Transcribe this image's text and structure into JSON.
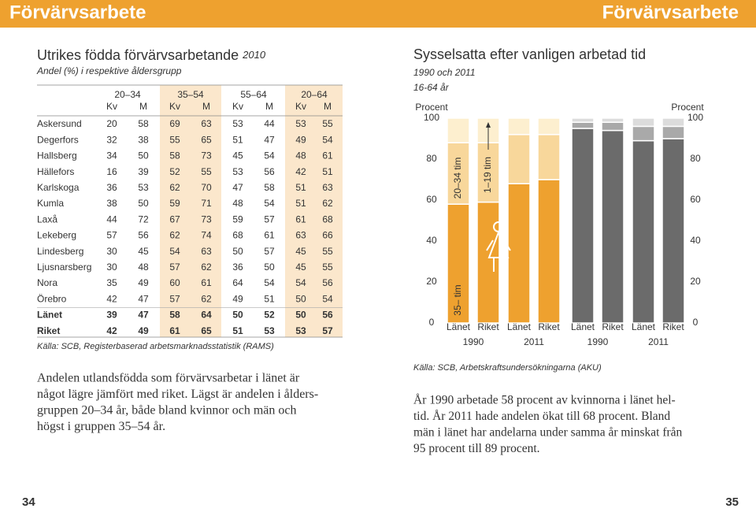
{
  "header": {
    "left": "Förvärvsarbete",
    "right": "Förvärvsarbete"
  },
  "table": {
    "title": "Utrikes födda förvärvsarbetande",
    "year": "2010",
    "subtitle": "Andel (%) i respektive åldersgrupp",
    "groups": [
      "20–34",
      "35–54",
      "55–64",
      "20–64"
    ],
    "subheads": [
      "Kv",
      "M",
      "Kv",
      "M",
      "Kv",
      "M",
      "Kv",
      "M"
    ],
    "rows": [
      [
        "Askersund",
        20,
        58,
        69,
        63,
        53,
        44,
        53,
        55
      ],
      [
        "Degerfors",
        32,
        38,
        55,
        65,
        51,
        47,
        49,
        54
      ],
      [
        "Hallsberg",
        34,
        50,
        58,
        73,
        45,
        54,
        48,
        61
      ],
      [
        "Hällefors",
        16,
        39,
        52,
        55,
        53,
        56,
        42,
        51
      ],
      [
        "Karlskoga",
        36,
        53,
        62,
        70,
        47,
        58,
        51,
        63
      ],
      [
        "Kumla",
        38,
        50,
        59,
        71,
        48,
        54,
        51,
        62
      ],
      [
        "Laxå",
        44,
        72,
        67,
        73,
        59,
        57,
        61,
        68
      ],
      [
        "Lekeberg",
        57,
        56,
        62,
        74,
        68,
        61,
        63,
        66
      ],
      [
        "Lindesberg",
        30,
        45,
        54,
        63,
        50,
        57,
        45,
        55
      ],
      [
        "Ljusnarsberg",
        30,
        48,
        57,
        62,
        36,
        50,
        45,
        55
      ],
      [
        "Nora",
        35,
        49,
        60,
        61,
        64,
        54,
        54,
        56
      ],
      [
        "Örebro",
        42,
        47,
        57,
        62,
        49,
        51,
        50,
        54
      ],
      [
        "Länet",
        39,
        47,
        58,
        64,
        50,
        52,
        50,
        56
      ],
      [
        "Riket",
        42,
        49,
        61,
        65,
        51,
        53,
        53,
        57
      ]
    ],
    "source": "Källa: SCB, Registerbaserad arbetsmarknadsstatistik (RAMS)"
  },
  "left_text": [
    "Andelen utlandsfödda som förvärvsarbetar i länet är",
    "något lägre jämfört med riket. Lägst är andelen i ålders-",
    "gruppen 20–34 år, både bland kvinnor och män och",
    "högst i gruppen 35–54 år."
  ],
  "chart_data": {
    "type": "stacked_bar",
    "title": "Sysselsatta efter vanligen arbetad tid",
    "subtitle": "1990 och 2011",
    "subtitle2": "16-64 år",
    "ylabel": "Procent",
    "y2label": "Procent",
    "ylim": [
      0,
      100
    ],
    "yticks": [
      0,
      20,
      40,
      60,
      80,
      100
    ],
    "y2lim": [
      0,
      100
    ],
    "y2ticks": [
      0,
      20,
      40,
      60,
      80,
      100
    ],
    "categories": [
      "Länet",
      "Riket",
      "Länet",
      "Riket",
      "Länet",
      "Riket",
      "Länet",
      "Riket"
    ],
    "groups": [
      "1990",
      "2011",
      "1990",
      "2011"
    ],
    "series": [
      {
        "name": "35– tim",
        "colors": [
          "#eea12f",
          "#eea12f",
          "#eea12f",
          "#eea12f",
          "#6b6b6b",
          "#6b6b6b",
          "#6b6b6b",
          "#6b6b6b"
        ],
        "values": [
          58,
          59,
          68,
          70,
          95,
          94,
          89,
          90
        ]
      },
      {
        "name": "20–34 tim",
        "colors": [
          "#f8d79b",
          "#f8d79b",
          "#f8d79b",
          "#f8d79b",
          "#a9a9a9",
          "#a9a9a9",
          "#a9a9a9",
          "#a9a9a9"
        ],
        "values": [
          30,
          29,
          24,
          22,
          3,
          4,
          7,
          6
        ]
      },
      {
        "name": "1–19 tim",
        "colors": [
          "#fdefcf",
          "#fdefcf",
          "#fdefcf",
          "#fdefcf",
          "#dcdcdc",
          "#dcdcdc",
          "#dcdcdc",
          "#dcdcdc"
        ],
        "values": [
          12,
          12,
          8,
          8,
          2,
          2,
          4,
          4
        ]
      }
    ],
    "source": "Källa: SCB, Arbetskraftsundersökningarna (AKU)"
  },
  "right_text": [
    "År 1990 arbetade 58 procent av kvinnorna i länet hel-",
    "tid. År 2011 hade andelen ökat till 68 procent. Bland",
    "män i länet har andelarna under samma år minskat från",
    "95 procent till 89 procent."
  ],
  "pages": [
    "34",
    "35"
  ]
}
